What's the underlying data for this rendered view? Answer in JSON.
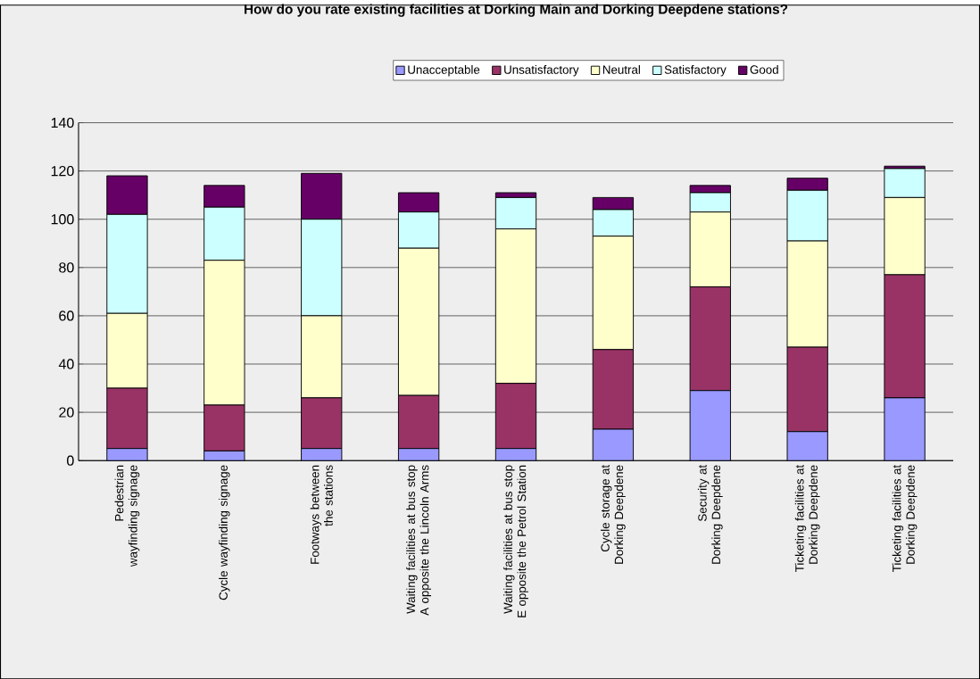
{
  "chart_data": {
    "type": "bar",
    "stacked": true,
    "title": "How do you rate existing facilities at Dorking Main and Dorking Deepdene stations?",
    "categories": [
      "Pedestrian wayfinding signage",
      "Cycle wayfinding signage",
      "Footways between the stations",
      "Waiting facilities at bus stop A opposite the Lincoln Arms",
      "Waiting facilities at bus stop E opposite the Petrol Station",
      "Cycle storage at Dorking Deepdene",
      "Security at Dorking Deepdene",
      "Ticketing facilities at Dorking Deepdene",
      "Ticketing facilities at Dorking Deepdene"
    ],
    "series": [
      {
        "name": "Unacceptable",
        "color": "#9999ff",
        "values": [
          5,
          4,
          5,
          5,
          5,
          13,
          29,
          12,
          26
        ]
      },
      {
        "name": "Unsatisfactory",
        "color": "#993366",
        "values": [
          25,
          19,
          21,
          22,
          27,
          33,
          43,
          35,
          51
        ]
      },
      {
        "name": "Neutral",
        "color": "#ffffcc",
        "values": [
          31,
          60,
          34,
          61,
          64,
          47,
          31,
          44,
          32
        ]
      },
      {
        "name": "Satisfactory",
        "color": "#ccffff",
        "values": [
          41,
          22,
          40,
          15,
          13,
          11,
          8,
          21,
          12
        ]
      },
      {
        "name": "Good",
        "color": "#660066",
        "values": [
          16,
          9,
          19,
          8,
          2,
          5,
          3,
          5,
          1
        ]
      }
    ],
    "ylim": [
      0,
      140
    ],
    "yticks": [
      0,
      20,
      40,
      60,
      80,
      100,
      120,
      140
    ],
    "grid": "y",
    "legend": "top"
  }
}
